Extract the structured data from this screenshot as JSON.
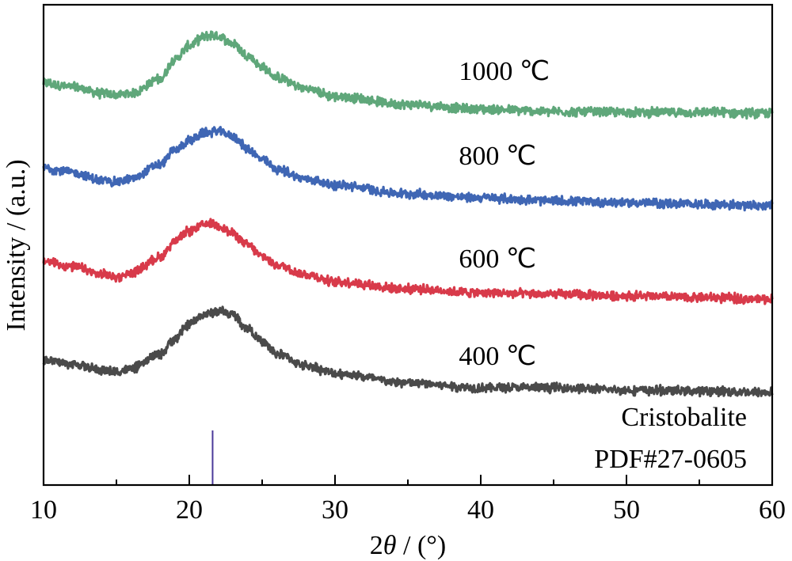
{
  "chart_data": {
    "type": "line",
    "title": "",
    "xlabel": "2θ / (°)",
    "xlabel_parts": {
      "prefix": "2",
      "symbol": "θ",
      "suffix": " / (°)"
    },
    "ylabel": "Intensity / (a.u.)",
    "xlim": [
      10,
      60
    ],
    "ylim": [
      0,
      607
    ],
    "x_ticks": [
      10,
      20,
      30,
      40,
      50,
      60
    ],
    "x_tick_labels": [
      "10",
      "20",
      "30",
      "40",
      "50",
      "60"
    ],
    "x_minor_ticks": [
      15,
      25,
      35,
      45,
      55
    ],
    "y_ticks_shown": false,
    "grid": false,
    "legend": "inline labels at right",
    "series": [
      {
        "name": "1000 ℃",
        "color": "#5fa77a",
        "label_at": [
          38.5,
          512
        ],
        "x": [
          10,
          12,
          14,
          15,
          16,
          18,
          19,
          20,
          21,
          21.5,
          22,
          23,
          24,
          25,
          26,
          28,
          30,
          35,
          40,
          45,
          50,
          55,
          60
        ],
        "y": [
          508,
          503,
          495,
          493,
          495,
          513,
          538,
          555,
          566,
          569,
          567,
          558,
          543,
          528,
          515,
          501,
          491,
          481,
          475,
          472,
          471,
          471,
          470
        ]
      },
      {
        "name": "800 ℃",
        "color": "#3f66b4",
        "label_at": [
          38.5,
          405
        ],
        "x": [
          10,
          12,
          14,
          15,
          16,
          18,
          19,
          20,
          21,
          22,
          23,
          24,
          25,
          26,
          28,
          30,
          35,
          40,
          45,
          50,
          55,
          60
        ],
        "y": [
          401,
          395,
          385,
          383,
          387,
          405,
          423,
          435,
          445,
          447,
          441,
          425,
          411,
          399,
          387,
          379,
          368,
          363,
          359,
          357,
          355,
          353
        ]
      },
      {
        "name": "600 ℃",
        "color": "#d83a4a",
        "label_at": [
          38.5,
          275
        ],
        "x": [
          10,
          12,
          14,
          15,
          16,
          18,
          19,
          20,
          21,
          21.5,
          22,
          23,
          24,
          25,
          26,
          28,
          30,
          35,
          40,
          45,
          50,
          55,
          60
        ],
        "y": [
          283,
          276,
          266,
          263,
          268,
          288,
          308,
          321,
          329,
          331,
          328,
          318,
          303,
          289,
          278,
          266,
          257,
          248,
          243,
          241,
          239,
          237,
          235
        ]
      },
      {
        "name": "400 ℃",
        "color": "#4a4a4a",
        "label_at": [
          38.5,
          152
        ],
        "x": [
          10,
          12,
          14,
          15,
          16,
          18,
          19,
          20,
          21,
          22,
          23,
          24,
          25,
          26,
          28,
          30,
          35,
          40,
          45,
          50,
          55,
          60
        ],
        "y": [
          158,
          153,
          145,
          143,
          147,
          165,
          185,
          203,
          215,
          220,
          215,
          198,
          181,
          166,
          151,
          141,
          129,
          123,
          123,
          120,
          119,
          117
        ]
      }
    ],
    "reference": {
      "name": "Cristobalite",
      "card": "PDF#27-0605",
      "color": "#4b3a9a",
      "peaks": [
        {
          "x": 21.6,
          "relative_height": 1.0
        }
      ],
      "height_au": 69
    },
    "noise_amplitude_au": 5
  }
}
